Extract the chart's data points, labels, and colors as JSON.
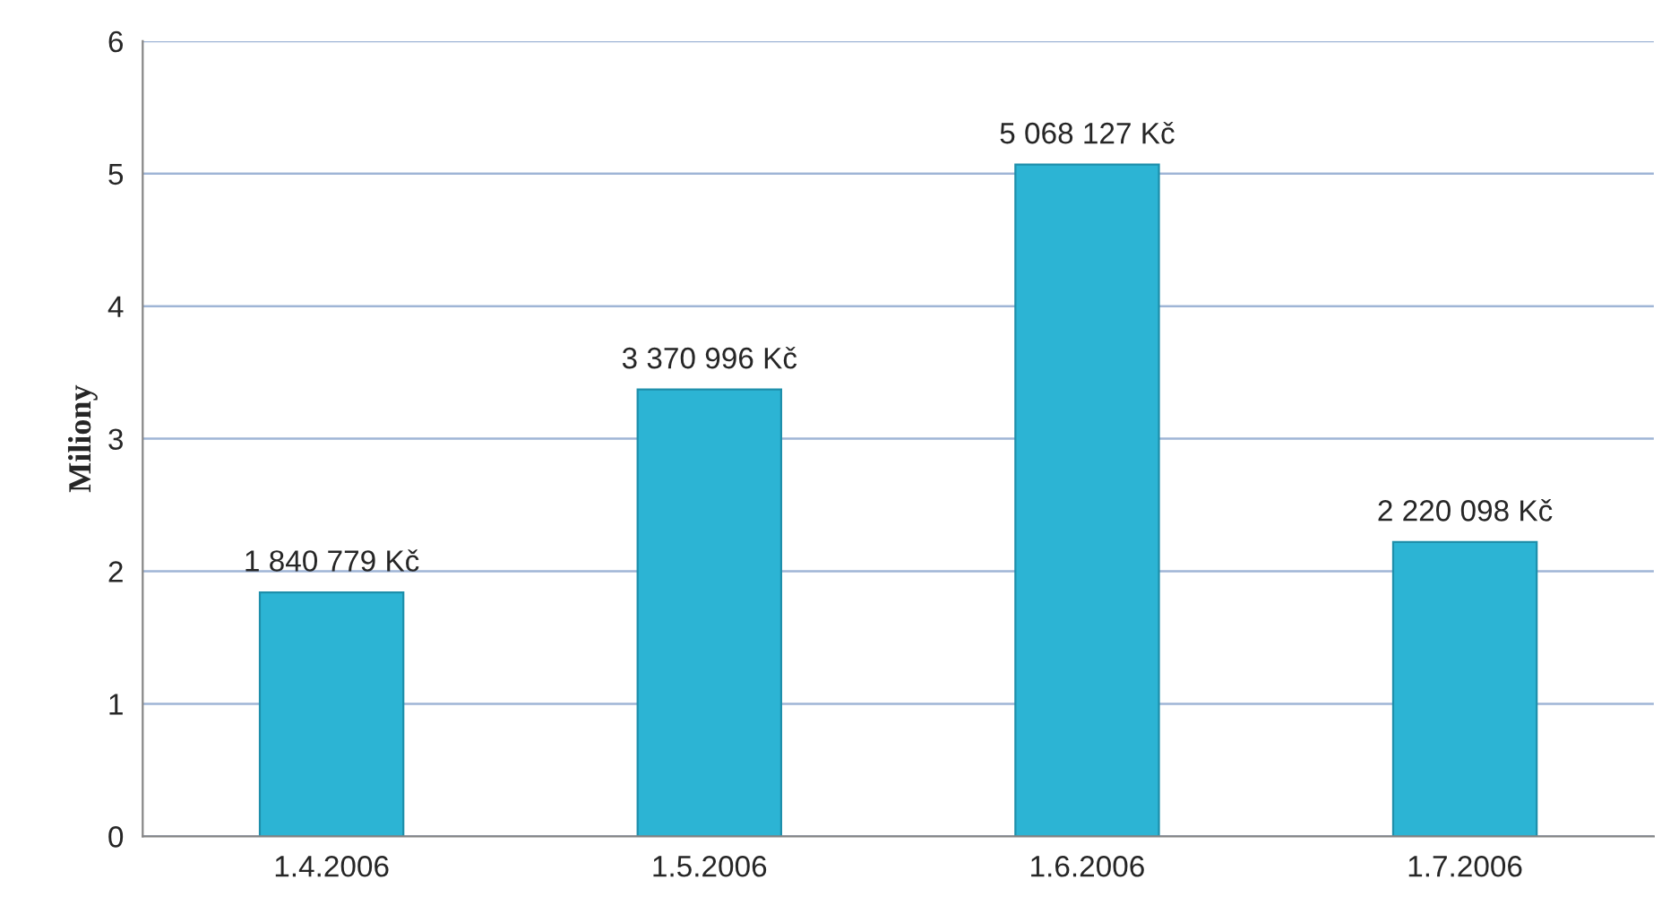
{
  "chart_data": {
    "type": "bar",
    "ylabel": "Miliony",
    "categories": [
      "1.4.2006",
      "1.5.2006",
      "1.6.2006",
      "1.7.2006"
    ],
    "values": [
      1.840779,
      3.370996,
      5.068127,
      2.220098
    ],
    "annotations": [
      {
        "text": "1 840 779 Kč",
        "x": "1.4.2006",
        "y": 1.840779
      },
      {
        "text": "3 370 996 Kč",
        "x": "1.5.2006",
        "y": 3.370996
      },
      {
        "text": "5 068 127 Kč",
        "x": "1.6.2006",
        "y": 5.068127
      },
      {
        "text": "2 220 098 Kč",
        "x": "1.7.2006",
        "y": 2.220098
      }
    ],
    "color": "#2cb4d4",
    "ylim": [
      0,
      6
    ],
    "yticks": [
      0,
      1,
      2,
      3,
      4,
      5,
      6
    ],
    "grid": "y",
    "legend": false
  }
}
